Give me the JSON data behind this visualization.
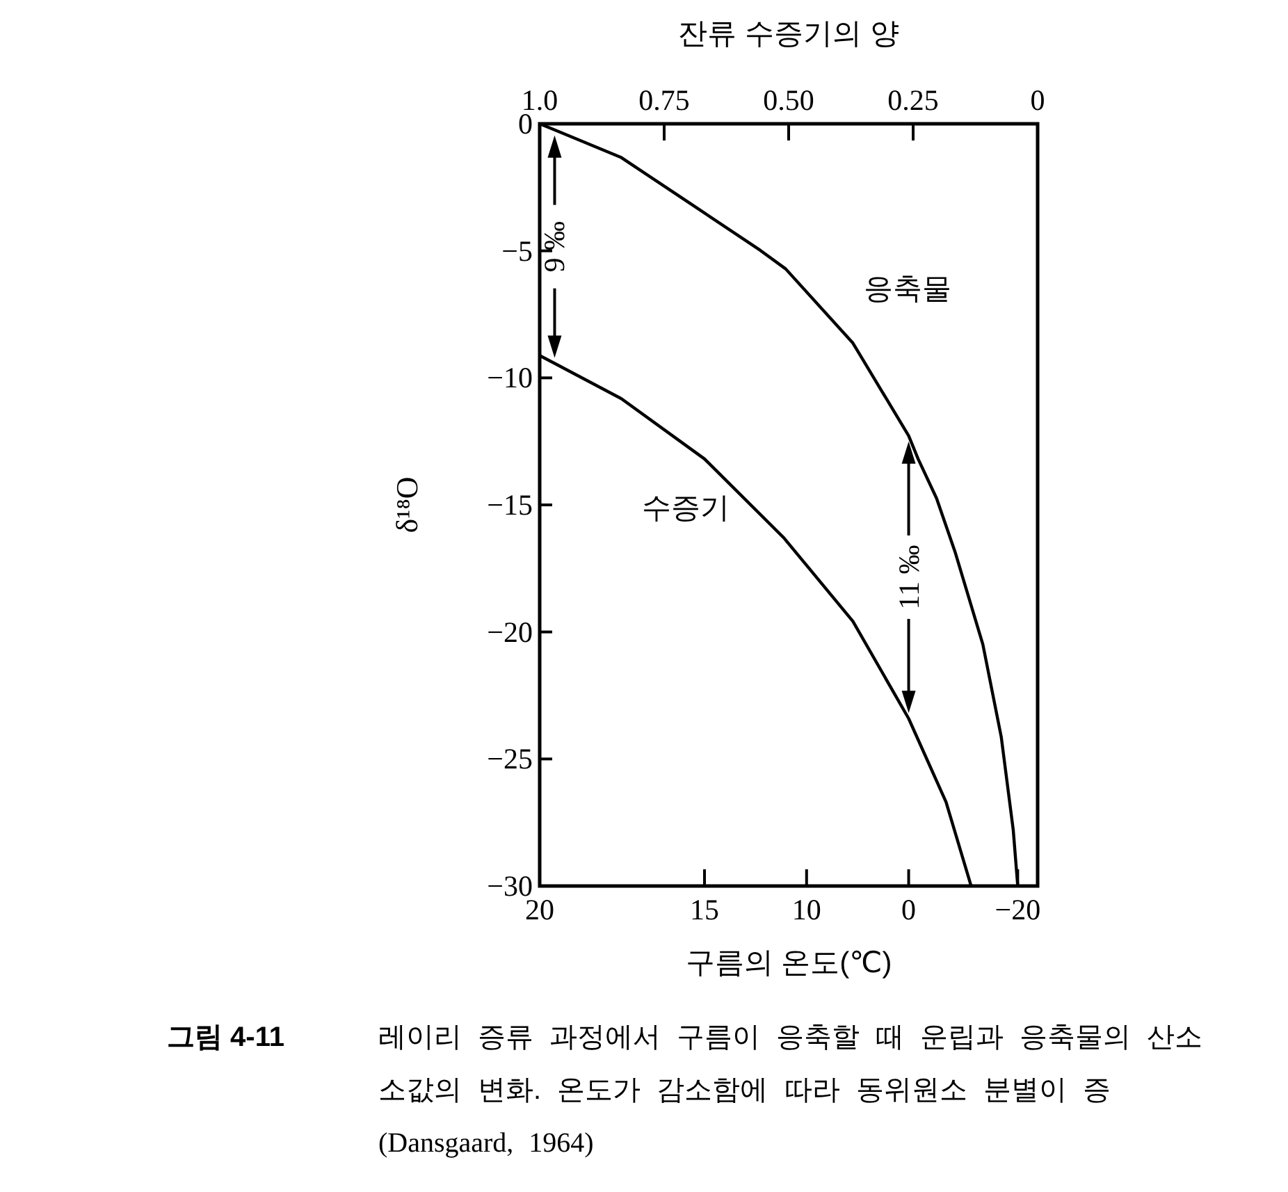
{
  "chart_data": {
    "type": "line",
    "xlabel": "잔류 수증기의 양",
    "x2label": "구름의 온도(℃)",
    "ylabel": "δ¹⁸O",
    "xlim": [
      1,
      0
    ],
    "xticks": [
      {
        "value": 1,
        "label": "1.0"
      },
      0.75,
      {
        "value": 0.5,
        "label": "0.50"
      },
      0.25,
      0
    ],
    "ylim": [
      -30,
      0
    ],
    "yticks": [
      0,
      {
        "value": -5,
        "label": "−5"
      },
      {
        "value": -10,
        "label": "−10"
      },
      {
        "value": -15,
        "label": "−15"
      },
      {
        "value": -20,
        "label": "−20"
      },
      {
        "value": -25,
        "label": "−25"
      },
      {
        "value": -30,
        "label": "−30"
      }
    ],
    "series": [
      {
        "name": "응축물",
        "color": "#000000",
        "x": [
          1,
          0.97,
          0.836,
          0.696,
          0.557,
          0.506,
          0.371,
          0.259,
          0.24,
          0.203,
          0.166,
          0.11,
          0.073,
          0.049,
          0.04
        ],
        "values": [
          0,
          -0.24,
          -1.33,
          -3.16,
          -4.98,
          -5.71,
          -8.63,
          -12.28,
          -13.19,
          -14.74,
          -16.84,
          -20.49,
          -24.14,
          -27.79,
          -29.98
        ]
      },
      {
        "name": "수증기",
        "color": "#000000",
        "x": [
          1,
          0.97,
          0.836,
          0.669,
          0.51,
          0.464,
          0.371,
          0.259,
          0.184,
          0.134
        ],
        "values": [
          -9.12,
          -9.43,
          -10.82,
          -13.19,
          -16.29,
          -17.38,
          -19.58,
          -23.41,
          -26.69,
          -29.97
        ]
      }
    ],
    "annotations": [
      "9 ‰",
      "11 ‰",
      "20",
      "15",
      "10",
      "0",
      "−20",
      "그림 4-11",
      "레이리 증류 과정에서 구름이 응축할 때 운립과 응축물의 산소",
      "소값의 변화. 온도가 감소함에 따라 동위원소 분별이 증",
      "(Dansgaard, 1964)"
    ]
  }
}
